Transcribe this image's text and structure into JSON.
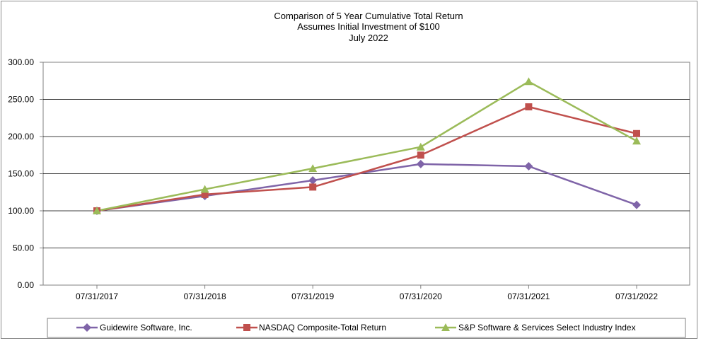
{
  "chart_data": {
    "type": "line",
    "title": [
      "Comparison of 5 Year Cumulative Total Return",
      "Assumes Initial Investment of $100",
      "July 2022"
    ],
    "categories": [
      "07/31/2017",
      "07/31/2018",
      "07/31/2019",
      "07/31/2020",
      "07/31/2021",
      "07/31/2022"
    ],
    "y_ticks": [
      "0.00",
      "50.00",
      "100.00",
      "150.00",
      "200.00",
      "250.00",
      "300.00"
    ],
    "ylim": [
      0,
      300
    ],
    "grid": "horizontal",
    "legend_position": "bottom",
    "series": [
      {
        "name": "Guidewire Software, Inc.",
        "color": "#7f64a8",
        "marker": "diamond",
        "values": [
          100,
          120,
          141,
          163,
          160,
          108
        ]
      },
      {
        "name": "NASDAQ Composite-Total Return",
        "color": "#c0504d",
        "marker": "square",
        "values": [
          100,
          122,
          132,
          175,
          240,
          204
        ]
      },
      {
        "name": "S&P Software & Services Select Industry Index",
        "color": "#9bbb59",
        "marker": "triangle",
        "values": [
          100,
          129,
          157,
          186,
          274,
          194
        ]
      }
    ]
  }
}
